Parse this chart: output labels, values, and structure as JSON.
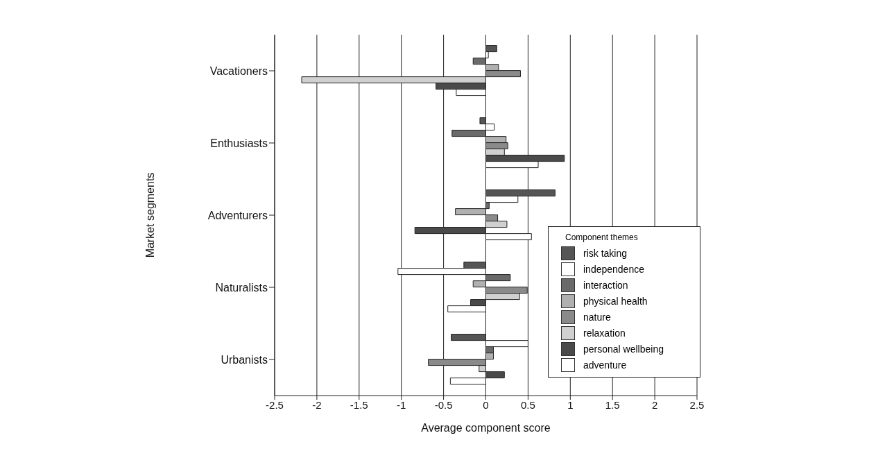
{
  "chart_data": {
    "type": "bar",
    "orientation": "horizontal",
    "xlabel": "Average component score",
    "ylabel": "Market segments",
    "legend_title": "Component themes",
    "categories": [
      "Vacationers",
      "Enthusiasts",
      "Adventurers",
      "Naturalists",
      "Urbanists"
    ],
    "series": [
      {
        "name": "risk taking",
        "color": "#555555",
        "values": [
          0.13,
          -0.07,
          0.82,
          -0.26,
          -0.41
        ]
      },
      {
        "name": "independence",
        "color": "#ffffff",
        "values": [
          0.03,
          0.1,
          0.38,
          -1.04,
          0.5
        ]
      },
      {
        "name": "interaction",
        "color": "#6a6a6a",
        "values": [
          -0.15,
          -0.4,
          0.04,
          0.29,
          0.09
        ]
      },
      {
        "name": "physical health",
        "color": "#b0b0b0",
        "values": [
          0.15,
          0.24,
          -0.36,
          -0.15,
          0.09
        ]
      },
      {
        "name": "nature",
        "color": "#8a8a8a",
        "values": [
          0.41,
          0.26,
          0.14,
          0.49,
          -0.68
        ]
      },
      {
        "name": "relaxation",
        "color": "#d0d0d0",
        "values": [
          -2.18,
          0.22,
          0.25,
          0.4,
          -0.08
        ]
      },
      {
        "name": "personal wellbeing",
        "color": "#4a4a4a",
        "values": [
          -0.59,
          0.93,
          -0.84,
          -0.18,
          0.22
        ]
      },
      {
        "name": "adventure",
        "color": "#ffffff",
        "values": [
          -0.35,
          0.62,
          0.54,
          -0.45,
          -0.42
        ]
      }
    ],
    "xlim": [
      -2.5,
      2.5
    ],
    "xticks": [
      -2.5,
      -2,
      -1.5,
      -1,
      -0.5,
      0,
      0.5,
      1,
      1.5,
      2,
      2.5
    ],
    "grid": "x",
    "legend": "bottom right"
  }
}
